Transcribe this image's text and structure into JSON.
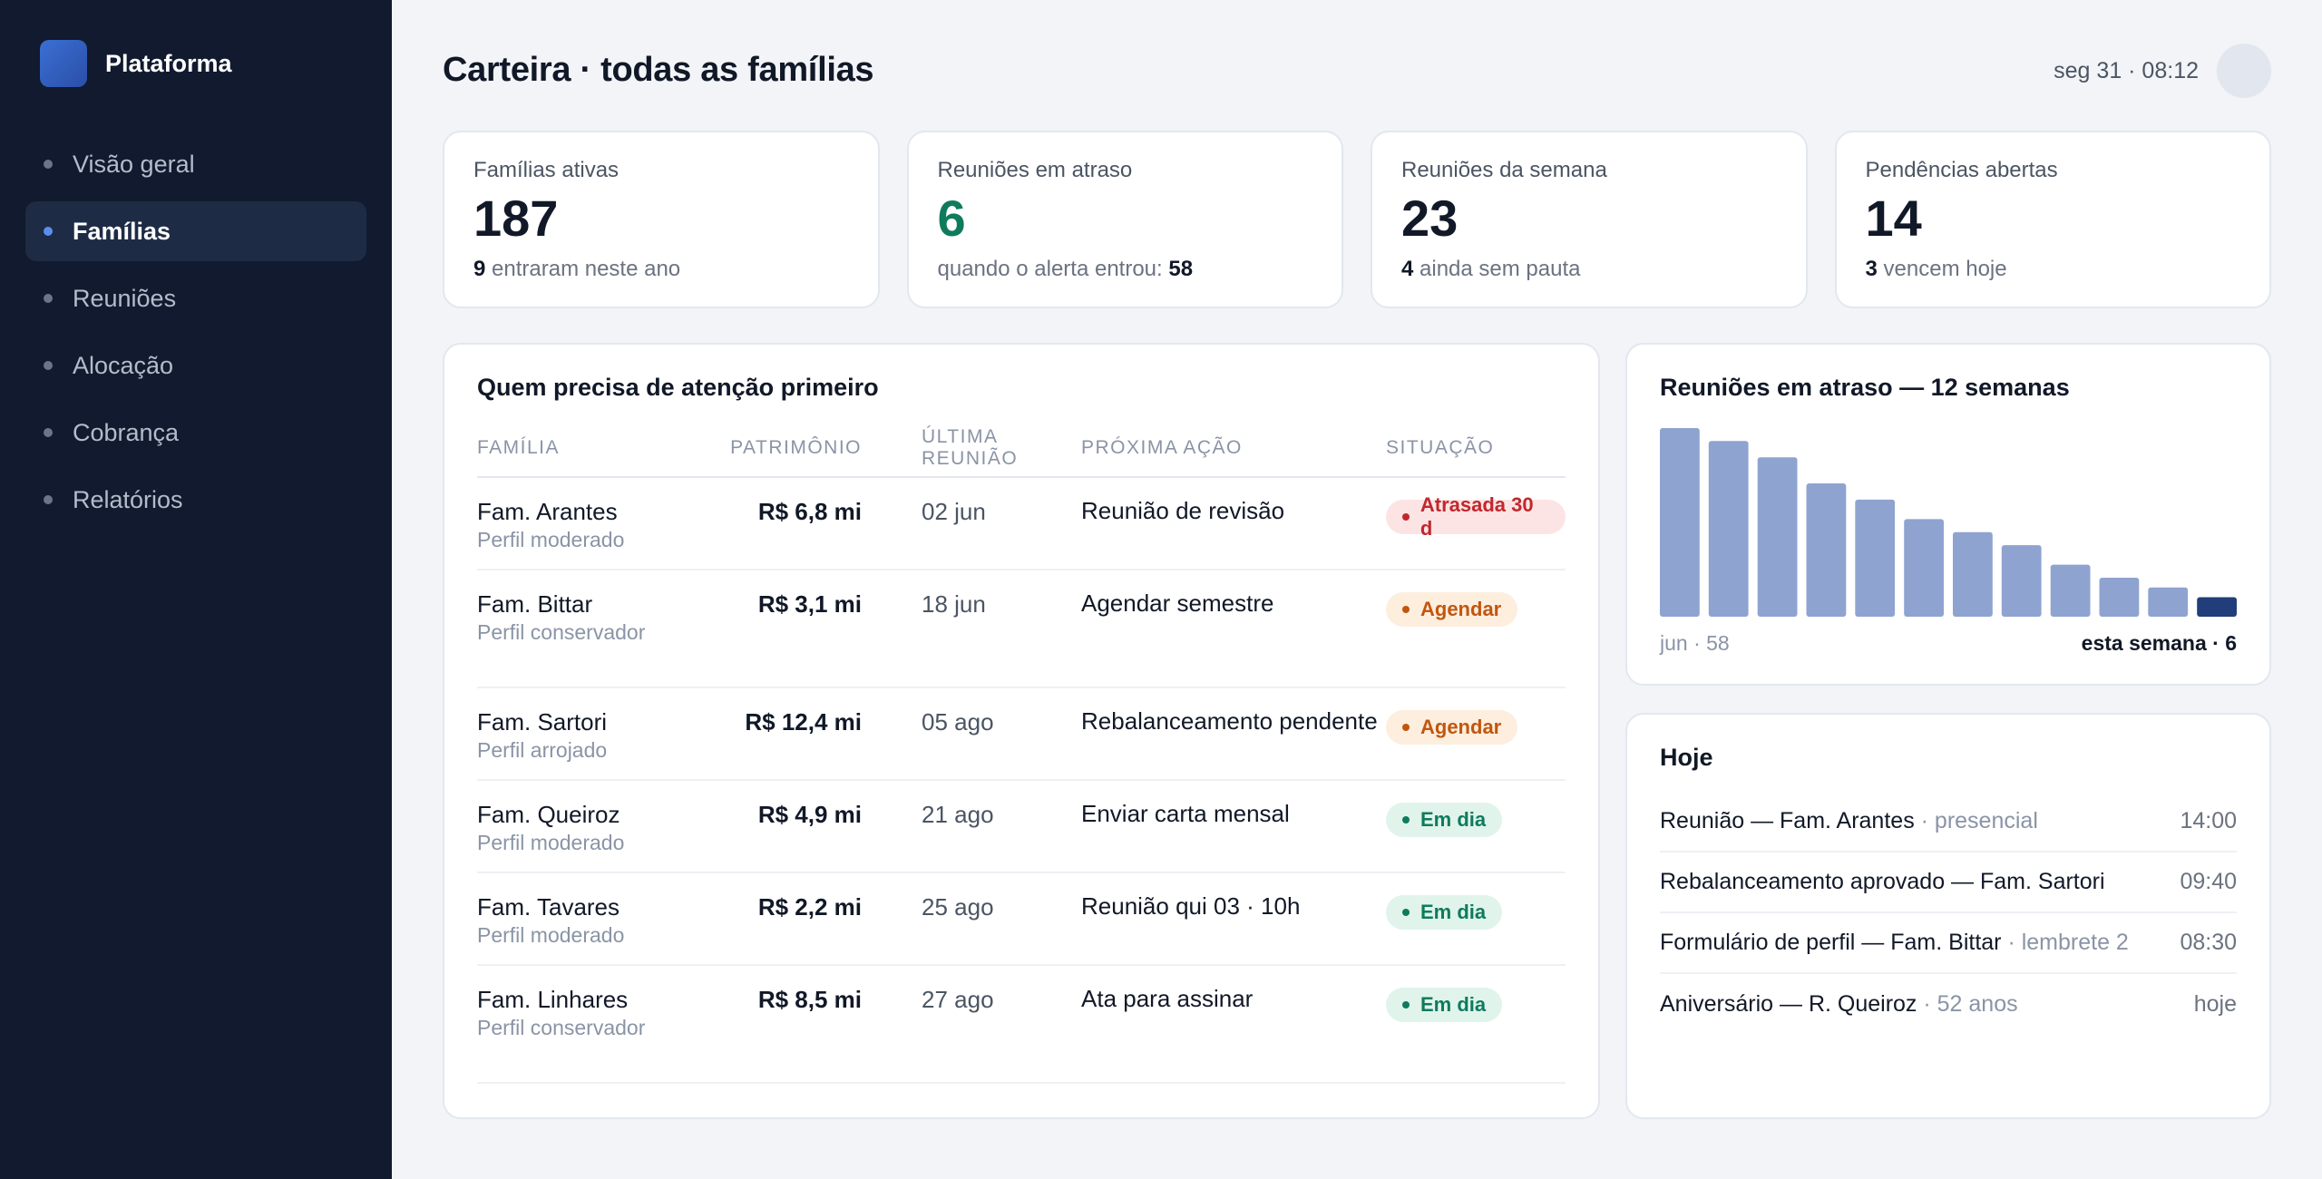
{
  "app": {
    "name": "Plataforma"
  },
  "sidebar": {
    "items": [
      {
        "label": "Visão geral",
        "active": false
      },
      {
        "label": "Famílias",
        "active": true
      },
      {
        "label": "Reuniões",
        "active": false
      },
      {
        "label": "Alocação",
        "active": false
      },
      {
        "label": "Cobrança",
        "active": false
      },
      {
        "label": "Relatórios",
        "active": false
      }
    ]
  },
  "header": {
    "title": "Carteira · todas as famílias",
    "time": "seg 31 · 08:12"
  },
  "kpis": [
    {
      "label": "Famílias ativas",
      "value": "187",
      "sub_strong": "9",
      "sub_text": " entraram neste ano",
      "strong_last": false
    },
    {
      "label": "Reuniões em atraso",
      "value": "6",
      "sub_text": "quando o alerta entrou: ",
      "sub_strong": "58",
      "strong_last": true
    },
    {
      "label": "Reuniões da semana",
      "value": "23",
      "sub_strong": "4",
      "sub_text": " ainda sem pauta",
      "strong_last": false
    },
    {
      "label": "Pendências abertas",
      "value": "14",
      "sub_strong": "3",
      "sub_text": " vencem hoje",
      "strong_last": false
    }
  ],
  "attention": {
    "title": "Quem precisa de atenção primeiro",
    "columns": [
      "Família",
      "Patrimônio",
      "Última reunião",
      "Próxima ação",
      "Situação"
    ],
    "rows": [
      {
        "family": "Fam. Arantes",
        "profile": "Perfil moderado",
        "wealth": "R$ 6,8 mi",
        "last": "02 jun",
        "next": "Reunião de revisão",
        "status": "Atrasada 30 d",
        "status_kind": "red"
      },
      {
        "family": "Fam. Bittar",
        "profile": "Perfil conservador",
        "wealth": "R$ 3,1 mi",
        "last": "18 jun",
        "next": "Agendar semestre",
        "status": "Agendar",
        "status_kind": "orange"
      },
      {
        "family": "Fam. Sartori",
        "profile": "Perfil arrojado",
        "wealth": "R$ 12,4 mi",
        "last": "05 ago",
        "next": "Rebalanceamento pendente",
        "status": "Agendar",
        "status_kind": "orange"
      },
      {
        "family": "Fam. Queiroz",
        "profile": "Perfil moderado",
        "wealth": "R$ 4,9 mi",
        "last": "21 ago",
        "next": "Enviar carta mensal",
        "status": "Em dia",
        "status_kind": "green"
      },
      {
        "family": "Fam. Tavares",
        "profile": "Perfil moderado",
        "wealth": "R$ 2,2 mi",
        "last": "25 ago",
        "next": "Reunião qui 03 · 10h",
        "status": "Em dia",
        "status_kind": "green"
      },
      {
        "family": "Fam. Linhares",
        "profile": "Perfil conservador",
        "wealth": "R$ 8,5 mi",
        "last": "27 ago",
        "next": "Ata para assinar",
        "status": "Em dia",
        "status_kind": "green"
      }
    ]
  },
  "chart_data": {
    "type": "bar",
    "title": "Reuniões em atraso — 12 semanas",
    "values": [
      58,
      54,
      49,
      41,
      36,
      30,
      26,
      22,
      16,
      12,
      9,
      6
    ],
    "label_start": "jun · 58",
    "label_end": "esta semana · 6",
    "ylim": [
      0,
      58
    ],
    "colors": {
      "bar": "#8fa3d1",
      "highlight": "#223e7a"
    }
  },
  "today": {
    "title": "Hoje",
    "items": [
      {
        "text": "Reunião — Fam. Arantes",
        "note": " · presencial",
        "time": "14:00"
      },
      {
        "text": "Rebalanceamento aprovado — Fam. Sartori",
        "note": "",
        "time": "09:40"
      },
      {
        "text": "Formulário de perfil — Fam. Bittar",
        "note": " · lembrete 2",
        "time": "08:30"
      },
      {
        "text": "Aniversário — R. Queiroz",
        "note": " · 52 anos",
        "time": "hoje"
      }
    ]
  }
}
